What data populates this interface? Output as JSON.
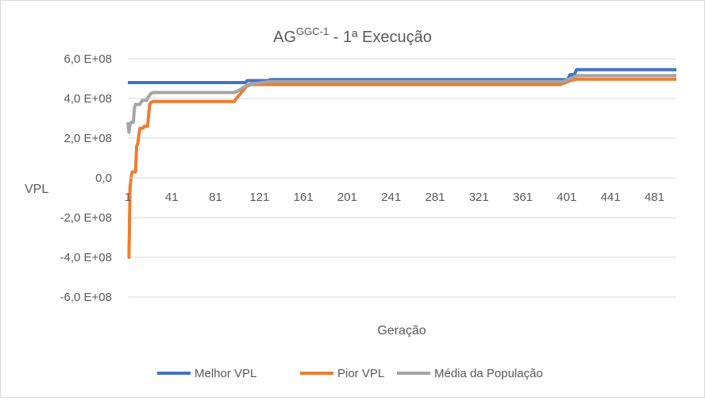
{
  "chart_data": {
    "type": "line",
    "title": "AG",
    "title_superscript": "GGC-1",
    "title_suffix": " - 1ª Execução",
    "xlabel": "Geração",
    "ylabel": "VPL",
    "xlim": [
      1,
      501
    ],
    "ylim": [
      -700000000,
      600000000
    ],
    "x_ticks": [
      1,
      41,
      81,
      121,
      161,
      201,
      241,
      281,
      321,
      361,
      401,
      441,
      481
    ],
    "x_tick_labels": [
      "1",
      "41",
      "81",
      "121",
      "161",
      "201",
      "241",
      "281",
      "321",
      "361",
      "401",
      "441",
      "481"
    ],
    "y_ticks": [
      600000000,
      400000000,
      200000000,
      0,
      -200000000,
      -400000000,
      -600000000
    ],
    "y_tick_labels": [
      "6,0 E+08",
      "4,0 E+08",
      "2,0 E+08",
      "0,0",
      "-2,0 E+08",
      "-4,0 E+08",
      "-6,0 E+08"
    ],
    "grid": true,
    "legend_position": "bottom",
    "series": [
      {
        "name": "Melhor VPL",
        "color": "#4472c4",
        "points": [
          [
            1,
            480000000
          ],
          [
            108,
            480000000
          ],
          [
            110,
            490000000
          ],
          [
            129,
            490000000
          ],
          [
            131,
            495000000
          ],
          [
            402,
            495000000
          ],
          [
            404,
            520000000
          ],
          [
            408,
            520000000
          ],
          [
            410,
            545000000
          ],
          [
            501,
            545000000
          ]
        ]
      },
      {
        "name": "Pior VPL",
        "color": "#ed7d31",
        "points": [
          [
            1,
            -400000000
          ],
          [
            2,
            -400000000
          ],
          [
            3,
            -50000000
          ],
          [
            4,
            0
          ],
          [
            5,
            30000000
          ],
          [
            8,
            30000000
          ],
          [
            9,
            160000000
          ],
          [
            10,
            170000000
          ],
          [
            11,
            210000000
          ],
          [
            12,
            250000000
          ],
          [
            15,
            250000000
          ],
          [
            16,
            260000000
          ],
          [
            19,
            260000000
          ],
          [
            20,
            320000000
          ],
          [
            21,
            370000000
          ],
          [
            22,
            380000000
          ],
          [
            24,
            385000000
          ],
          [
            98,
            385000000
          ],
          [
            100,
            400000000
          ],
          [
            103,
            420000000
          ],
          [
            106,
            440000000
          ],
          [
            109,
            460000000
          ],
          [
            113,
            470000000
          ],
          [
            395,
            470000000
          ],
          [
            400,
            480000000
          ],
          [
            404,
            490000000
          ],
          [
            410,
            497000000
          ],
          [
            501,
            497000000
          ]
        ]
      },
      {
        "name": "Média da População",
        "color": "#a5a5a5",
        "points": [
          [
            1,
            280000000
          ],
          [
            2,
            230000000
          ],
          [
            3,
            270000000
          ],
          [
            4,
            280000000
          ],
          [
            6,
            280000000
          ],
          [
            7,
            350000000
          ],
          [
            8,
            370000000
          ],
          [
            12,
            370000000
          ],
          [
            14,
            390000000
          ],
          [
            18,
            390000000
          ],
          [
            20,
            410000000
          ],
          [
            22,
            425000000
          ],
          [
            24,
            430000000
          ],
          [
            98,
            430000000
          ],
          [
            102,
            440000000
          ],
          [
            106,
            455000000
          ],
          [
            111,
            470000000
          ],
          [
            115,
            475000000
          ],
          [
            120,
            478000000
          ],
          [
            130,
            485000000
          ],
          [
            398,
            485000000
          ],
          [
            402,
            495000000
          ],
          [
            406,
            505000000
          ],
          [
            410,
            515000000
          ],
          [
            501,
            515000000
          ]
        ]
      }
    ]
  }
}
